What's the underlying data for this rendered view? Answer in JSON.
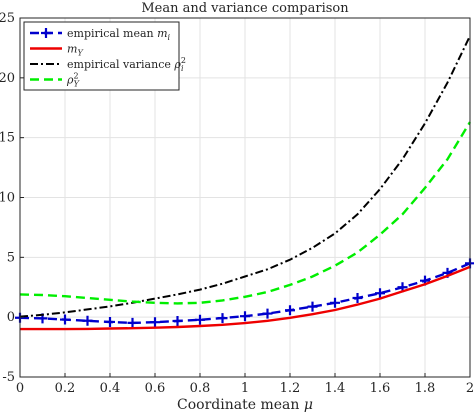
{
  "chart_data": {
    "type": "line",
    "title": "Mean and variance comparison",
    "xlabel": "Coordinate mean μ",
    "ylabel": "",
    "xlim": [
      0,
      2
    ],
    "ylim": [
      -5,
      25
    ],
    "x_ticks": [
      0,
      0.2,
      0.4,
      0.6,
      0.8,
      1,
      1.2,
      1.4,
      1.6,
      1.8,
      2
    ],
    "y_ticks": [
      -5,
      0,
      5,
      10,
      15,
      20,
      25
    ],
    "x_tick_labels": [
      "0",
      "0.2",
      "0.4",
      "0.6",
      "0.8",
      "1",
      "1.2",
      "1.4",
      "1.6",
      "1.8",
      "2"
    ],
    "y_tick_labels": [
      "-5",
      "0",
      "5",
      "10",
      "15",
      "20",
      "25"
    ],
    "grid": true,
    "legend_position": "top-left",
    "series": [
      {
        "name": "empirical mean m_i",
        "legend_main": "empirical mean ",
        "legend_var": "m",
        "legend_sub": "i",
        "legend_sup": "",
        "color": "#0000cc",
        "style": "dashed-plus",
        "x": [
          0,
          0.1,
          0.2,
          0.3,
          0.4,
          0.5,
          0.6,
          0.7,
          0.8,
          0.9,
          1.0,
          1.1,
          1.2,
          1.3,
          1.4,
          1.5,
          1.6,
          1.7,
          1.8,
          1.9,
          2.0
        ],
        "values": [
          -0.05,
          -0.1,
          -0.2,
          -0.3,
          -0.4,
          -0.48,
          -0.42,
          -0.32,
          -0.22,
          -0.08,
          0.08,
          0.3,
          0.58,
          0.88,
          1.2,
          1.6,
          2.0,
          2.5,
          3.05,
          3.7,
          4.5
        ]
      },
      {
        "name": "m_Y",
        "legend_main": "",
        "legend_var": "m",
        "legend_sub": "Y",
        "legend_sup": "",
        "color": "#ee0000",
        "style": "solid",
        "x": [
          0,
          0.1,
          0.2,
          0.3,
          0.4,
          0.5,
          0.6,
          0.7,
          0.8,
          0.9,
          1.0,
          1.1,
          1.2,
          1.3,
          1.4,
          1.5,
          1.6,
          1.7,
          1.8,
          1.9,
          2.0
        ],
        "values": [
          -1.0,
          -1.0,
          -1.0,
          -0.98,
          -0.95,
          -0.92,
          -0.88,
          -0.82,
          -0.74,
          -0.64,
          -0.5,
          -0.3,
          -0.05,
          0.25,
          0.6,
          1.05,
          1.55,
          2.15,
          2.75,
          3.45,
          4.2
        ]
      },
      {
        "name": "empirical variance ρ_i^2",
        "legend_main": "empirical variance ",
        "legend_var": "ρ",
        "legend_sub": "i",
        "legend_sup": "2",
        "color": "#000000",
        "style": "dashdot",
        "x": [
          0,
          0.1,
          0.2,
          0.3,
          0.4,
          0.5,
          0.6,
          0.7,
          0.8,
          0.9,
          1.0,
          1.1,
          1.2,
          1.3,
          1.4,
          1.5,
          1.6,
          1.7,
          1.8,
          1.9,
          2.0
        ],
        "values": [
          0.05,
          0.2,
          0.4,
          0.65,
          0.9,
          1.2,
          1.55,
          1.9,
          2.3,
          2.8,
          3.4,
          4.0,
          4.8,
          5.8,
          7.0,
          8.6,
          10.7,
          13.2,
          16.2,
          19.6,
          23.5
        ]
      },
      {
        "name": "ρ_Y^2",
        "legend_main": "",
        "legend_var": "ρ",
        "legend_sub": "Y",
        "legend_sup": "2",
        "color": "#00ee00",
        "style": "dashed",
        "x": [
          0,
          0.1,
          0.2,
          0.3,
          0.4,
          0.5,
          0.6,
          0.7,
          0.8,
          0.9,
          1.0,
          1.1,
          1.2,
          1.3,
          1.4,
          1.5,
          1.6,
          1.7,
          1.8,
          1.9,
          2.0
        ],
        "values": [
          1.9,
          1.85,
          1.75,
          1.6,
          1.45,
          1.3,
          1.2,
          1.15,
          1.2,
          1.4,
          1.7,
          2.1,
          2.7,
          3.4,
          4.3,
          5.4,
          6.9,
          8.6,
          10.8,
          13.2,
          16.3
        ]
      }
    ]
  }
}
